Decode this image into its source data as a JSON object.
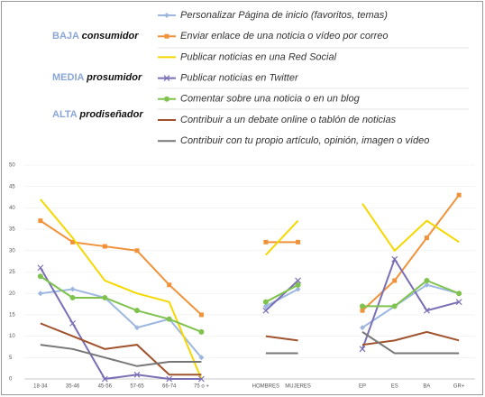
{
  "chart_data": {
    "type": "line",
    "annotations": [
      [
        "BAJA",
        "consumidor"
      ],
      [
        "MEDIA",
        "prosumidor"
      ],
      [
        "ALTA",
        "prodiseñador"
      ]
    ],
    "categories": [
      "18-34",
      "35-46",
      "45-56",
      "57-65",
      "66-74",
      "75 o +",
      null,
      "HOMBRES",
      "MUJERES",
      null,
      "EP",
      "ES",
      "BA",
      "GR+"
    ],
    "series": [
      {
        "name": "Personalizar Página de inicio (favoritos, temas)",
        "color": "#9db7e0",
        "marker": "diamond",
        "values": [
          20,
          21,
          19,
          12,
          14,
          5,
          null,
          17,
          21,
          null,
          12,
          17,
          22,
          20
        ]
      },
      {
        "name": "Enviar enlace de una noticia o vídeo por correo",
        "color": "#f0923a",
        "marker": "square",
        "values": [
          37,
          32,
          31,
          30,
          22,
          15,
          null,
          32,
          32,
          null,
          16,
          23,
          33,
          43
        ]
      },
      {
        "name": "Publicar noticias en una Red Social",
        "color": "#f5d800",
        "marker": "none",
        "values": [
          42,
          33,
          23,
          20,
          18,
          0,
          null,
          29,
          37,
          null,
          41,
          30,
          37,
          32
        ]
      },
      {
        "name": "Publicar noticias en Twitter",
        "color": "#7a6fb5",
        "marker": "x",
        "values": [
          26,
          13,
          0,
          1,
          0,
          0,
          null,
          16,
          23,
          null,
          7,
          28,
          16,
          18
        ]
      },
      {
        "name": "Comentar sobre una noticia o en un blog",
        "color": "#7fc24e",
        "marker": "circle",
        "values": [
          24,
          19,
          19,
          16,
          14,
          11,
          null,
          18,
          22,
          null,
          17,
          17,
          23,
          20
        ]
      },
      {
        "name": "Contribuir a un debate online o tablón de noticias",
        "color": "#a0522d",
        "marker": "none",
        "values": [
          13,
          10,
          7,
          8,
          1,
          1,
          null,
          10,
          9,
          null,
          8,
          9,
          11,
          9
        ]
      },
      {
        "name": "Contribuir con tu propio artículo, opinión, imagen o vídeo",
        "color": "#777777",
        "marker": "none",
        "values": [
          8,
          7,
          5,
          3,
          4,
          4,
          null,
          6,
          6,
          null,
          11,
          6,
          6,
          6
        ]
      }
    ],
    "ylim": [
      0,
      50
    ],
    "yticks": [
      0,
      5,
      10,
      15,
      20,
      25,
      30,
      35,
      40,
      45,
      50
    ],
    "grid": true
  }
}
